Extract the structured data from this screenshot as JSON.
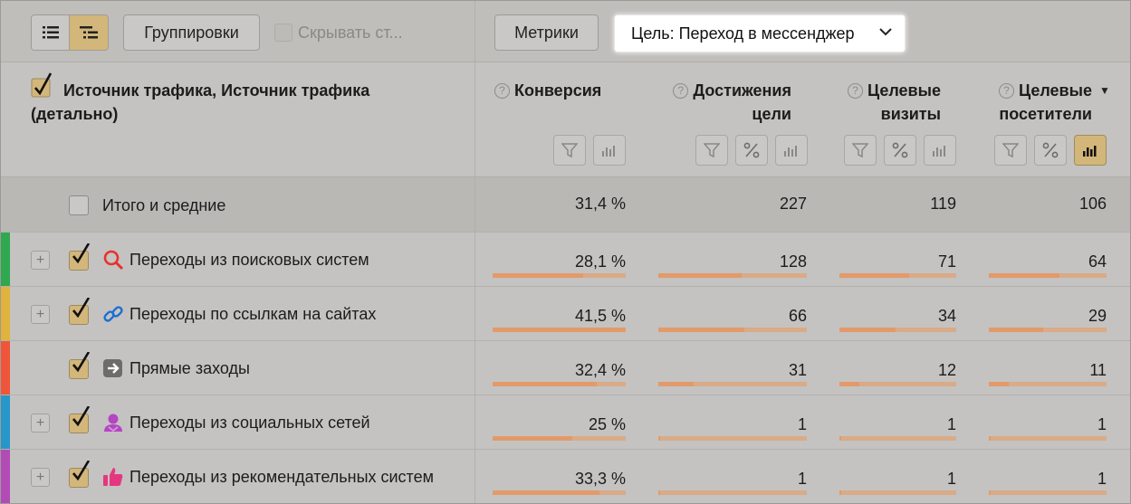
{
  "toolbar": {
    "groupings_label": "Группировки",
    "hide_label": "Скрывать ст...",
    "metrics_label": "Метрики",
    "goal_label": "Цель: Переход в мессенджер"
  },
  "header": {
    "dimension_title": "Источник трафика, Источник трафика (детально)",
    "columns": [
      {
        "label": "Конверсия",
        "help": "?"
      },
      {
        "label": "Достижения цели",
        "help": "?"
      },
      {
        "label": "Целевые визиты",
        "help": "?"
      },
      {
        "label": "Целевые посетители",
        "help": "?"
      }
    ],
    "sort_indicator": "▼"
  },
  "totals": {
    "label": "Итого и средние",
    "values": [
      "31,4 %",
      "227",
      "119",
      "106"
    ]
  },
  "rows": [
    {
      "label": "Переходы из поисковых систем",
      "values": [
        "28,1 %",
        "128",
        "71",
        "64"
      ],
      "icon": "search-icon",
      "stripe": "#2fa84f",
      "expandable": true,
      "fractions": [
        0.68,
        0.56,
        0.6,
        0.6
      ]
    },
    {
      "label": "Переходы по ссылкам на сайтах",
      "values": [
        "41,5 %",
        "66",
        "34",
        "29"
      ],
      "icon": "link-icon",
      "stripe": "#e0b33c",
      "expandable": true,
      "fractions": [
        1.0,
        0.58,
        0.48,
        0.46
      ]
    },
    {
      "label": "Прямые заходы",
      "values": [
        "32,4 %",
        "31",
        "12",
        "11"
      ],
      "icon": "arrow-right-icon",
      "stripe": "#f0553a",
      "expandable": false,
      "fractions": [
        0.78,
        0.24,
        0.17,
        0.17
      ]
    },
    {
      "label": "Переходы из социальных сетей",
      "values": [
        "25 %",
        "1",
        "1",
        "1"
      ],
      "icon": "social-user-icon",
      "stripe": "#2796c9",
      "expandable": true,
      "fractions": [
        0.6,
        0.01,
        0.01,
        0.01
      ]
    },
    {
      "label": "Переходы из рекомендательных систем",
      "values": [
        "33,3 %",
        "1",
        "1",
        "1"
      ],
      "icon": "thumbs-up-icon",
      "stripe": "#b24bb5",
      "expandable": true,
      "fractions": [
        0.8,
        0.01,
        0.01,
        0.01
      ]
    }
  ]
}
